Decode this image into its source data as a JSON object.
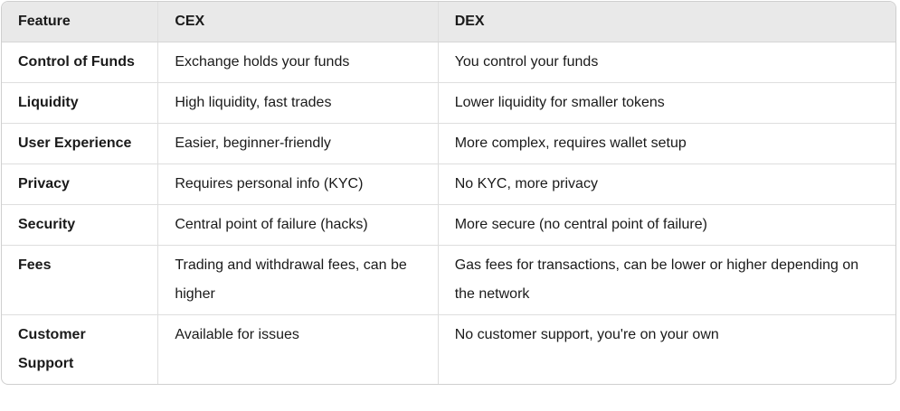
{
  "table": {
    "colors": {
      "header_bg": "#e9e9e9",
      "outer_border": "#cfcfcf",
      "inner_border": "#dedede",
      "text": "#1a1a1a"
    },
    "columns": [
      {
        "label": "Feature"
      },
      {
        "label": "CEX"
      },
      {
        "label": "DEX"
      }
    ],
    "rows": [
      {
        "feature": "Control of Funds",
        "cex": "Exchange holds your funds",
        "dex": "You control your funds"
      },
      {
        "feature": "Liquidity",
        "cex": "High liquidity, fast trades",
        "dex": "Lower liquidity for smaller tokens"
      },
      {
        "feature": "User Experience",
        "cex": "Easier, beginner-friendly",
        "dex": "More complex, requires wallet setup"
      },
      {
        "feature": "Privacy",
        "cex": "Requires personal info (KYC)",
        "dex": "No KYC, more privacy"
      },
      {
        "feature": "Security",
        "cex": "Central point of failure (hacks)",
        "dex": "More secure (no central point of failure)"
      },
      {
        "feature": "Fees",
        "cex": "Trading and withdrawal fees, can be higher",
        "dex": "Gas fees for transactions, can be lower or higher depending on the network"
      },
      {
        "feature": "Customer Support",
        "cex": "Available for issues",
        "dex": "No customer support, you're on your own"
      }
    ]
  }
}
